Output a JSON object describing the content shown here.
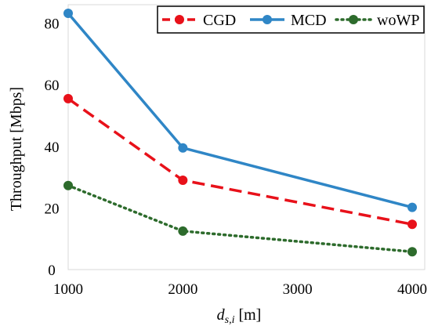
{
  "chart_data": {
    "type": "line",
    "xlabel_main": "d",
    "xlabel_sub": "s,i",
    "xlabel_unit": " [m]",
    "ylabel": "Throughput [Mbps]",
    "x": [
      1000,
      2000,
      4000
    ],
    "xticks": [
      "1000",
      "2000",
      "3000",
      "4000"
    ],
    "yticks": [
      "0",
      "20",
      "40",
      "60",
      "80"
    ],
    "xlim": [
      1000,
      4000
    ],
    "ylim": [
      0,
      86
    ],
    "grid": false,
    "legend_position": "top-right",
    "series": [
      {
        "name": "CGD",
        "values": [
          55.5,
          29,
          14.7
        ],
        "color": "#e8111a",
        "line_style": "dashed",
        "marker": "circle"
      },
      {
        "name": "MCD",
        "values": [
          83.2,
          39.5,
          20.2
        ],
        "color": "#2f86c6",
        "line_style": "solid",
        "marker": "circle"
      },
      {
        "name": "woWP",
        "values": [
          27.3,
          12.5,
          5.8
        ],
        "color": "#2d6b2c",
        "line_style": "dotted",
        "marker": "circle"
      }
    ]
  }
}
